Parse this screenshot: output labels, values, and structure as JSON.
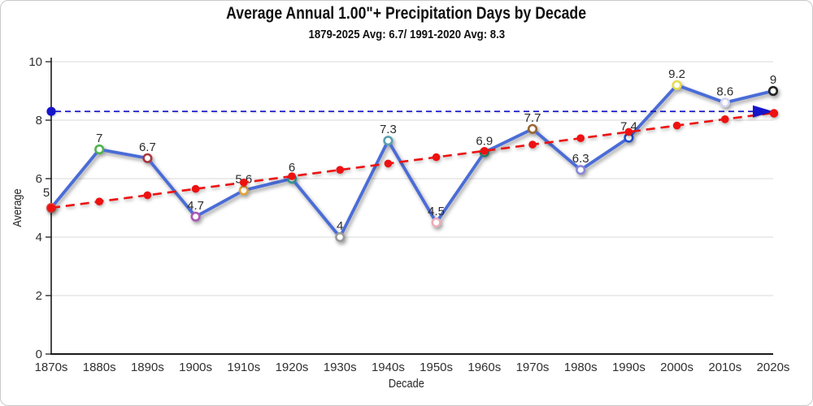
{
  "chart_data": {
    "type": "line",
    "title": "Average Annual 1.00\"+ Precipitation Days by Decade",
    "subtitle": "1879-2025 Avg: 6.7/ 1991-2020 Avg: 8.3",
    "xlabel": "Decade",
    "ylabel": "Average",
    "ylim": [
      0,
      10
    ],
    "yticks": [
      0,
      2,
      4,
      6,
      8,
      10
    ],
    "grid": "horizontal-only",
    "legend_position": "none",
    "categories": [
      "1870s",
      "1880s",
      "1890s",
      "1900s",
      "1910s",
      "1920s",
      "1930s",
      "1940s",
      "1950s",
      "1960s",
      "1970s",
      "1980s",
      "1990s",
      "2000s",
      "2010s",
      "2020s"
    ],
    "series": [
      {
        "name": "avg-precip-days",
        "values": [
          5,
          7,
          6.7,
          4.7,
          5.6,
          6,
          4,
          7.3,
          4.5,
          6.9,
          7.7,
          6.3,
          7.4,
          9.2,
          8.6,
          9
        ],
        "labels": [
          "5",
          "7",
          "6.7",
          "4.7",
          "5.6",
          "6",
          "4",
          "7.3",
          "4.5",
          "6.9",
          "7.7",
          "6.3",
          "7.4",
          "9.2",
          "8.6",
          "9"
        ],
        "line_color": "#4a6cd8",
        "marker_fill": "#ffffff",
        "marker_ring_colors": [
          "#e05045",
          "#4db34d",
          "#a8373e",
          "#a85ab4",
          "#e2a23a",
          "#35a09a",
          "#9a9a9a",
          "#5aa0b0",
          "#ecaebc",
          "#2f8f7a",
          "#996633",
          "#8888d8",
          "#2050d0",
          "#e4dc4e",
          "#d4d4ee",
          "#222222"
        ]
      }
    ],
    "trendline": {
      "name": "linear-trend",
      "start_value": 5.0,
      "end_value": 8.25,
      "color": "#ee1111",
      "style": "dashed",
      "has_markers": true
    },
    "reference_line": {
      "name": "1991-2020-average",
      "value": 8.3,
      "color": "#1515cb",
      "style": "dashed",
      "start_dot": true,
      "arrow_end": true
    },
    "style_colors": {
      "gridline": "#d9d9d9",
      "axis": "#1a1a1a",
      "tick_text": "#303030",
      "data_label_text": "#2b2b2b"
    }
  }
}
